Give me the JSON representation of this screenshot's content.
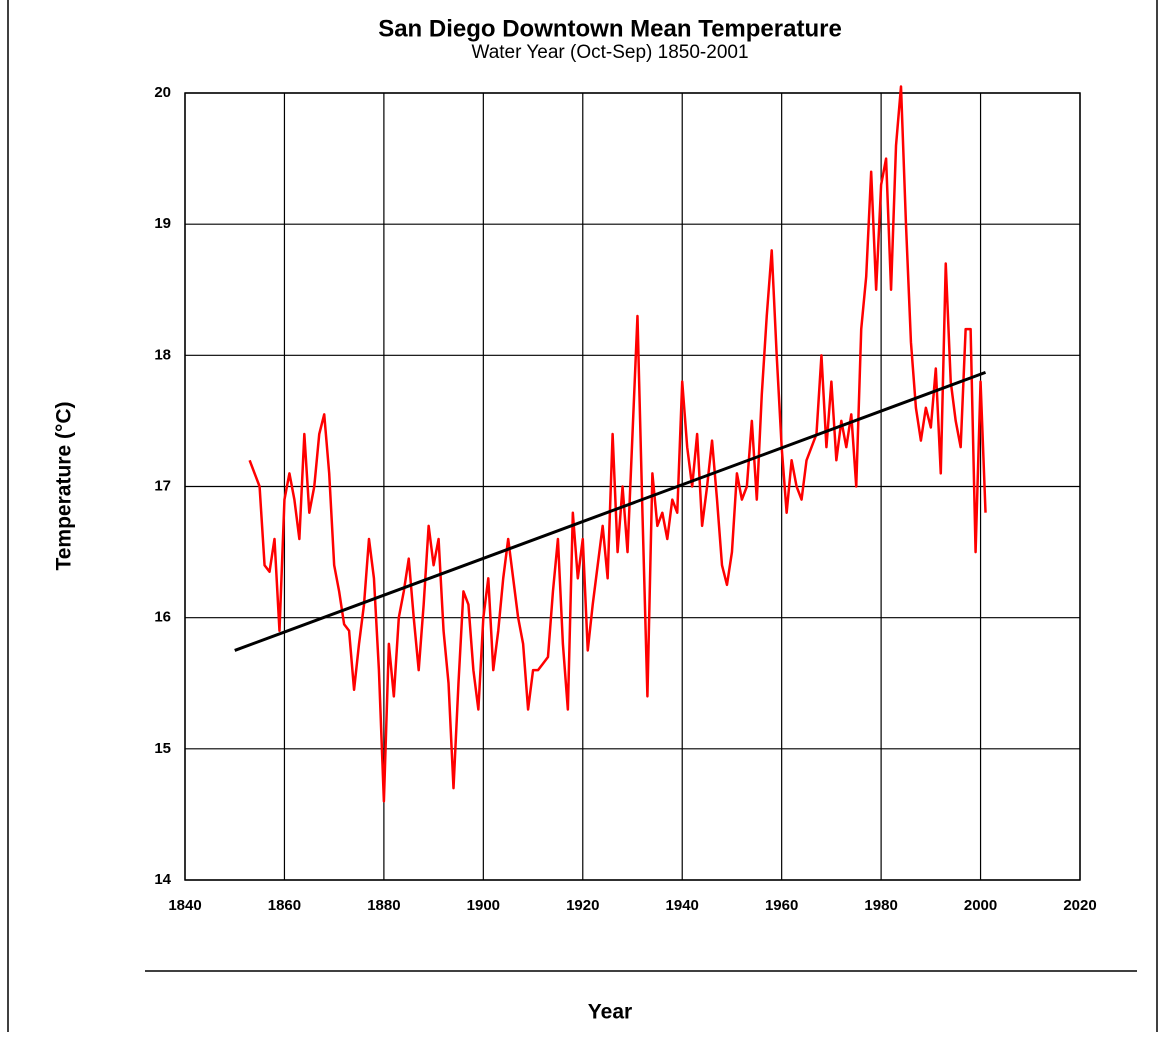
{
  "chart_data": {
    "type": "line",
    "title": "San Diego Downtown Mean Temperature",
    "subtitle": "Water Year (Oct-Sep) 1850-2001",
    "x_label": "Year",
    "y_label": "Temperature (°C)",
    "xlim": [
      1840,
      2020
    ],
    "xticks": [
      1840,
      1860,
      1880,
      1900,
      1920,
      1940,
      1960,
      1980,
      2000,
      2020
    ],
    "ylim": [
      14,
      20
    ],
    "yticks": [
      14,
      15,
      16,
      17,
      18,
      19,
      20
    ],
    "grid": true,
    "series": [
      {
        "color": "#ff0000",
        "x": [
          1853,
          1854,
          1855,
          1856,
          1857,
          1858,
          1859,
          1860,
          1861,
          1862,
          1863,
          1864,
          1865,
          1866,
          1867,
          1868,
          1869,
          1870,
          1871,
          1872,
          1873,
          1874,
          1875,
          1876,
          1877,
          1878,
          1879,
          1880,
          1881,
          1882,
          1883,
          1884,
          1885,
          1886,
          1887,
          1888,
          1889,
          1890,
          1891,
          1892,
          1893,
          1894,
          1895,
          1896,
          1897,
          1898,
          1899,
          1900,
          1901,
          1902,
          1903,
          1904,
          1905,
          1906,
          1907,
          1908,
          1909,
          1910,
          1911,
          1912,
          1913,
          1914,
          1915,
          1916,
          1917,
          1918,
          1919,
          1920,
          1921,
          1922,
          1923,
          1924,
          1925,
          1926,
          1927,
          1928,
          1929,
          1930,
          1931,
          1932,
          1933,
          1934,
          1935,
          1936,
          1937,
          1938,
          1939,
          1940,
          1941,
          1942,
          1943,
          1944,
          1945,
          1946,
          1947,
          1948,
          1949,
          1950,
          1951,
          1952,
          1953,
          1954,
          1955,
          1956,
          1957,
          1958,
          1959,
          1960,
          1961,
          1962,
          1963,
          1964,
          1965,
          1966,
          1967,
          1968,
          1969,
          1970,
          1971,
          1972,
          1973,
          1974,
          1975,
          1976,
          1977,
          1978,
          1979,
          1980,
          1981,
          1982,
          1983,
          1984,
          1985,
          1986,
          1987,
          1988,
          1989,
          1990,
          1991,
          1992,
          1993,
          1994,
          1995,
          1996,
          1997,
          1998,
          1999,
          2000,
          2001
        ],
        "values": [
          17.2,
          17.1,
          17.0,
          16.4,
          16.35,
          16.6,
          15.9,
          16.9,
          17.1,
          16.9,
          16.6,
          17.4,
          16.8,
          17.0,
          17.4,
          17.55,
          17.1,
          16.4,
          16.2,
          15.95,
          15.9,
          15.45,
          15.8,
          16.1,
          16.6,
          16.3,
          15.6,
          14.6,
          15.8,
          15.4,
          16.0,
          16.2,
          16.45,
          16.0,
          15.6,
          16.1,
          16.7,
          16.4,
          16.6,
          15.9,
          15.5,
          14.7,
          15.5,
          16.2,
          16.1,
          15.6,
          15.3,
          16.0,
          16.3,
          15.6,
          15.9,
          16.3,
          16.6,
          16.3,
          16.0,
          15.8,
          15.3,
          15.6,
          15.6,
          15.65,
          15.7,
          16.2,
          16.6,
          15.8,
          15.3,
          16.8,
          16.3,
          16.6,
          15.75,
          16.1,
          16.4,
          16.7,
          16.3,
          17.4,
          16.5,
          17.0,
          16.5,
          17.4,
          18.3,
          16.8,
          15.4,
          17.1,
          16.7,
          16.8,
          16.6,
          16.9,
          16.8,
          17.8,
          17.3,
          17.0,
          17.4,
          16.7,
          17.0,
          17.35,
          16.9,
          16.4,
          16.25,
          16.5,
          17.1,
          16.9,
          17.0,
          17.5,
          16.9,
          17.7,
          18.3,
          18.8,
          18.0,
          17.3,
          16.8,
          17.2,
          17.0,
          16.9,
          17.2,
          17.3,
          17.4,
          18.0,
          17.3,
          17.8,
          17.2,
          17.5,
          17.3,
          17.55,
          17.0,
          18.2,
          18.6,
          19.4,
          18.5,
          19.3,
          19.5,
          18.5,
          19.6,
          20.05,
          19.0,
          18.1,
          17.6,
          17.35,
          17.6,
          17.45,
          17.9,
          17.1,
          18.7,
          17.8,
          17.5,
          17.3,
          18.2,
          18.2,
          16.5,
          17.8,
          16.8
        ]
      },
      {
        "color": "#000000",
        "x": [
          1850,
          2001
        ],
        "values": [
          15.75,
          17.87
        ]
      }
    ]
  }
}
